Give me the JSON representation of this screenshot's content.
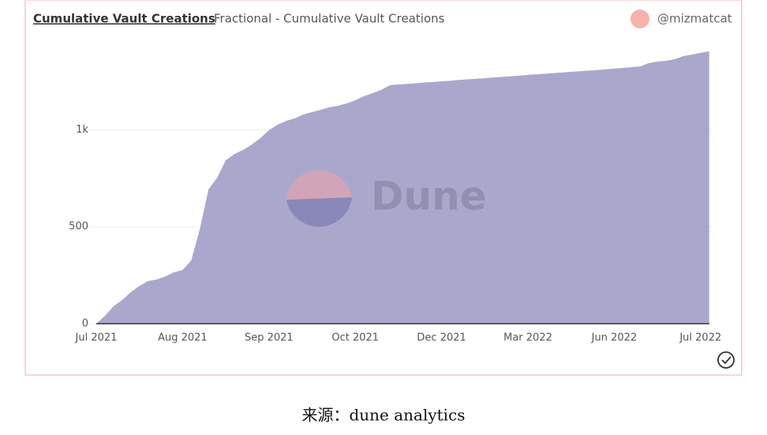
{
  "chart_data": {
    "type": "area",
    "title": "Cumulative Vault Creations",
    "subtitle": "Fractional - Cumulative Vault Creations",
    "author": "@mizmatcat",
    "watermark": "Dune",
    "source": "来源：dune analytics",
    "color": "#a9a8cc",
    "categories": [
      "Jul 2021",
      null,
      null,
      null,
      null,
      null,
      null,
      null,
      null,
      null,
      "Aug 2021",
      null,
      null,
      null,
      null,
      null,
      null,
      null,
      null,
      null,
      "Sep 2021",
      null,
      null,
      null,
      null,
      null,
      null,
      null,
      null,
      null,
      "Oct 2021",
      null,
      null,
      null,
      null,
      null,
      null,
      null,
      null,
      null,
      "Dec 2021",
      null,
      null,
      null,
      null,
      null,
      null,
      null,
      null,
      null,
      "Mar 2022",
      null,
      null,
      null,
      null,
      null,
      null,
      null,
      null,
      null,
      "Jun 2022",
      null,
      null,
      null,
      null,
      null,
      null,
      null,
      null,
      null,
      "Jul 2022",
      null
    ],
    "values": [
      0,
      40,
      90,
      122,
      163,
      195,
      220,
      228,
      244,
      265,
      277,
      326,
      489,
      692,
      753,
      843,
      875,
      896,
      924,
      957,
      998,
      1026,
      1046,
      1059,
      1079,
      1091,
      1103,
      1116,
      1124,
      1136,
      1152,
      1173,
      1189,
      1205,
      1230,
      1234,
      1237,
      1240,
      1244,
      1247,
      1250,
      1253,
      1257,
      1260,
      1263,
      1266,
      1270,
      1273,
      1276,
      1279,
      1283,
      1286,
      1289,
      1292,
      1296,
      1299,
      1302,
      1305,
      1308,
      1312,
      1315,
      1319,
      1323,
      1327,
      1344,
      1352,
      1356,
      1364,
      1380,
      1388,
      1397,
      1405
    ],
    "ylim": [
      0,
      1500
    ],
    "yticks": [
      0,
      500,
      {
        "value": 1000,
        "label": "1k"
      }
    ],
    "grid": true
  }
}
